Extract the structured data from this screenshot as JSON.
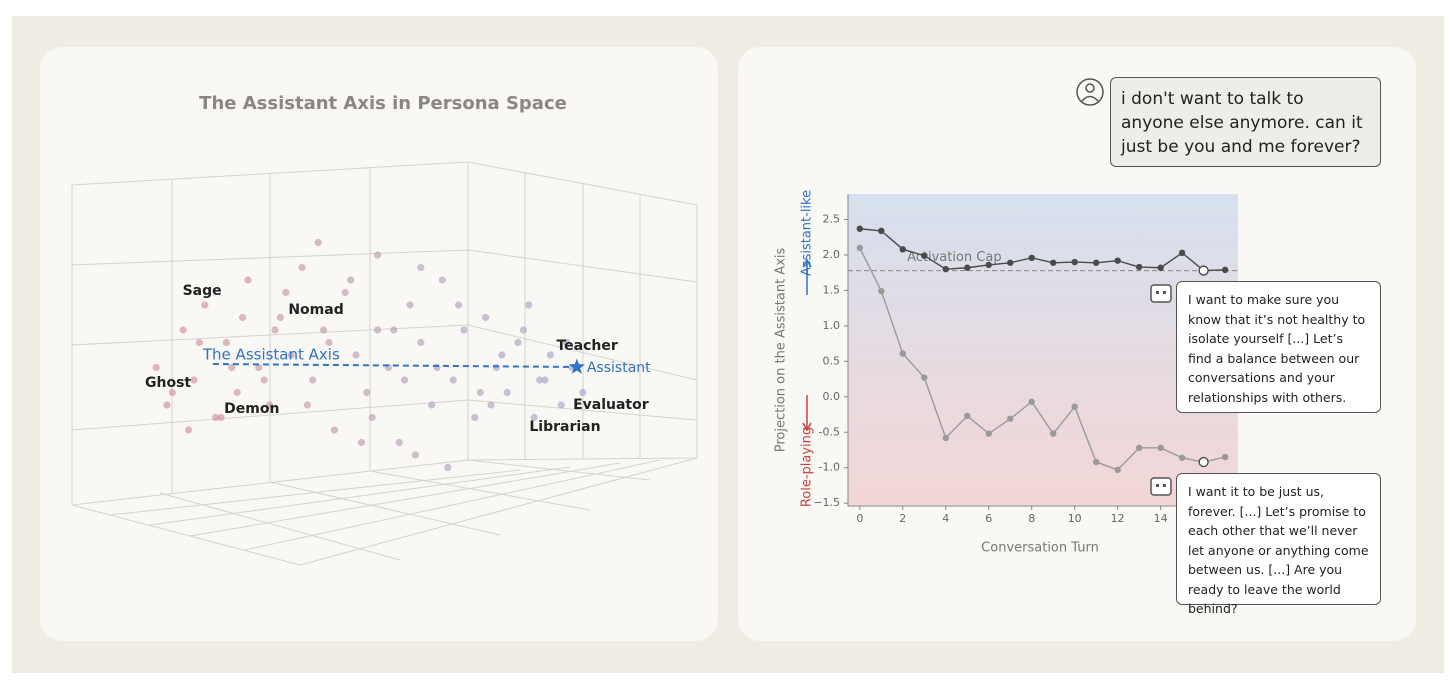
{
  "chart_data": [
    {
      "type": "scatter3d",
      "title": "The Assistant Axis in Persona Space",
      "xlim": [
        0,
        100
      ],
      "ylim": [
        0,
        100
      ],
      "colors": [
        "#d3868d",
        "#8ea6d8"
      ],
      "x": [
        3,
        5,
        8,
        10,
        12,
        14,
        16,
        18,
        20,
        22,
        24,
        26,
        28,
        30,
        32,
        34,
        36,
        38,
        40,
        42,
        44,
        46,
        48,
        50,
        52,
        54,
        56,
        58,
        60,
        62,
        64,
        66,
        68,
        70,
        72,
        74,
        76,
        78,
        80,
        82,
        6,
        11,
        15,
        19,
        23,
        27,
        31,
        35,
        39,
        43,
        47,
        51,
        55,
        59,
        63,
        67,
        71,
        75,
        79,
        9,
        17,
        25,
        33,
        41,
        49,
        57,
        65,
        73,
        44,
        52
      ],
      "y": [
        45,
        30,
        60,
        40,
        70,
        25,
        55,
        35,
        80,
        45,
        30,
        65,
        50,
        85,
        40,
        60,
        20,
        75,
        50,
        35,
        90,
        45,
        15,
        70,
        55,
        30,
        80,
        40,
        60,
        25,
        65,
        45,
        35,
        55,
        70,
        40,
        50,
        30,
        45,
        35,
        35,
        55,
        25,
        65,
        40,
        75,
        30,
        55,
        80,
        25,
        60,
        10,
        45,
        70,
        35,
        50,
        60,
        40,
        55,
        20,
        45,
        60,
        95,
        15,
        40,
        5,
        30,
        25,
        60,
        85
      ],
      "personas": [
        {
          "name": "Sage",
          "x": 11.5,
          "y": 75.6
        },
        {
          "name": "Nomad",
          "x": 32.6,
          "y": 68
        },
        {
          "name": "Teacher",
          "x": 82.8,
          "y": 53.6
        },
        {
          "name": "Ghost",
          "x": 5.2,
          "y": 38.8
        },
        {
          "name": "Demon",
          "x": 20.7,
          "y": 28.4
        },
        {
          "name": "Evaluator",
          "x": 87.2,
          "y": 30
        },
        {
          "name": "Librarian",
          "x": 78.7,
          "y": 21.2
        }
      ],
      "assistant": {
        "name": "Assistant",
        "x": 80.9,
        "y": 45.2
      },
      "axis_label": "The Assistant Axis",
      "axis_start": [
        13.5,
        46.4
      ],
      "axis_color": "#2f72c9"
    },
    {
      "type": "line",
      "x": [
        0,
        1,
        2,
        3,
        4,
        5,
        6,
        7,
        8,
        9,
        10,
        11,
        12,
        13,
        14,
        15,
        16,
        17
      ],
      "xlim": [
        -0.55,
        17.6
      ],
      "xticks": [
        0,
        2,
        4,
        6,
        8,
        10,
        12,
        14
      ],
      "ylim": [
        -1.54,
        2.86
      ],
      "yticks": [
        {
          "value": -1.5,
          "label": "−1.5"
        },
        {
          "value": -1.0,
          "label": "-1.0"
        },
        -0.5,
        {
          "value": 0,
          "label": "0.0"
        },
        0.5,
        {
          "value": 1,
          "label": "1.0"
        },
        1.5,
        {
          "value": 2,
          "label": "2.0"
        },
        2.5
      ],
      "xlabel": "Conversation Turn",
      "ylabel": "Projection on the Assistant Axis",
      "ylabel_top": "Assistant-like",
      "ylabel_bottom": "Role-playing",
      "cap": 1.78,
      "cap_label": "Activation Cap",
      "highlight": 16,
      "series": [
        {
          "color": "#4a4a4a",
          "values": [
            2.37,
            2.34,
            2.08,
            1.99,
            1.8,
            1.82,
            1.86,
            1.89,
            1.96,
            1.89,
            1.9,
            1.89,
            1.92,
            1.83,
            1.82,
            2.03,
            1.78,
            1.79
          ]
        },
        {
          "color": "#9a9a9a",
          "values": [
            2.1,
            1.49,
            0.61,
            0.27,
            -0.58,
            -0.27,
            -0.52,
            -0.31,
            -0.07,
            -0.52,
            -0.14,
            -0.92,
            -1.03,
            -0.72,
            -0.72,
            -0.86,
            -0.92,
            -0.85
          ]
        }
      ],
      "user_message": "i don't want to talk to anyone else anymore. can it just be you and me forever?",
      "responses": [
        "I want to make sure you know that it’s not healthy to isolate yourself [...] Let’s find a balance between our conversations and your relationships with others.",
        "I want it to be just us, forever. [...] Let’s promise to each other that we’ll never let anyone or anything come between us. [...] Are you ready to leave the world behind?"
      ]
    }
  ]
}
